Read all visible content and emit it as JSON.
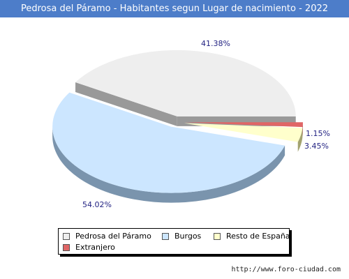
{
  "title": "Pedrosa del Páramo - Habitantes segun Lugar de nacimiento - 2022",
  "footer": "http://www.foro-ciudad.com",
  "chart_data": {
    "type": "pie",
    "title": "Pedrosa del Páramo - Habitantes segun Lugar de nacimiento - 2022",
    "slices": [
      {
        "label": "Pedrosa del Páramo",
        "value": 41.38,
        "value_label": "41.38%",
        "color": "#eeeeee",
        "side_color": "#999999"
      },
      {
        "label": "Burgos",
        "value": 54.02,
        "value_label": "54.02%",
        "color": "#cce6ff",
        "side_color": "#7a94ad"
      },
      {
        "label": "Resto de España",
        "value": 3.45,
        "value_label": "3.45%",
        "color": "#ffffcc",
        "side_color": "#a3a370"
      },
      {
        "label": "Extranjero",
        "value": 1.15,
        "value_label": "1.15%",
        "color": "#e06666",
        "side_color": "#9c3a3a"
      }
    ],
    "legend_position": "bottom"
  }
}
